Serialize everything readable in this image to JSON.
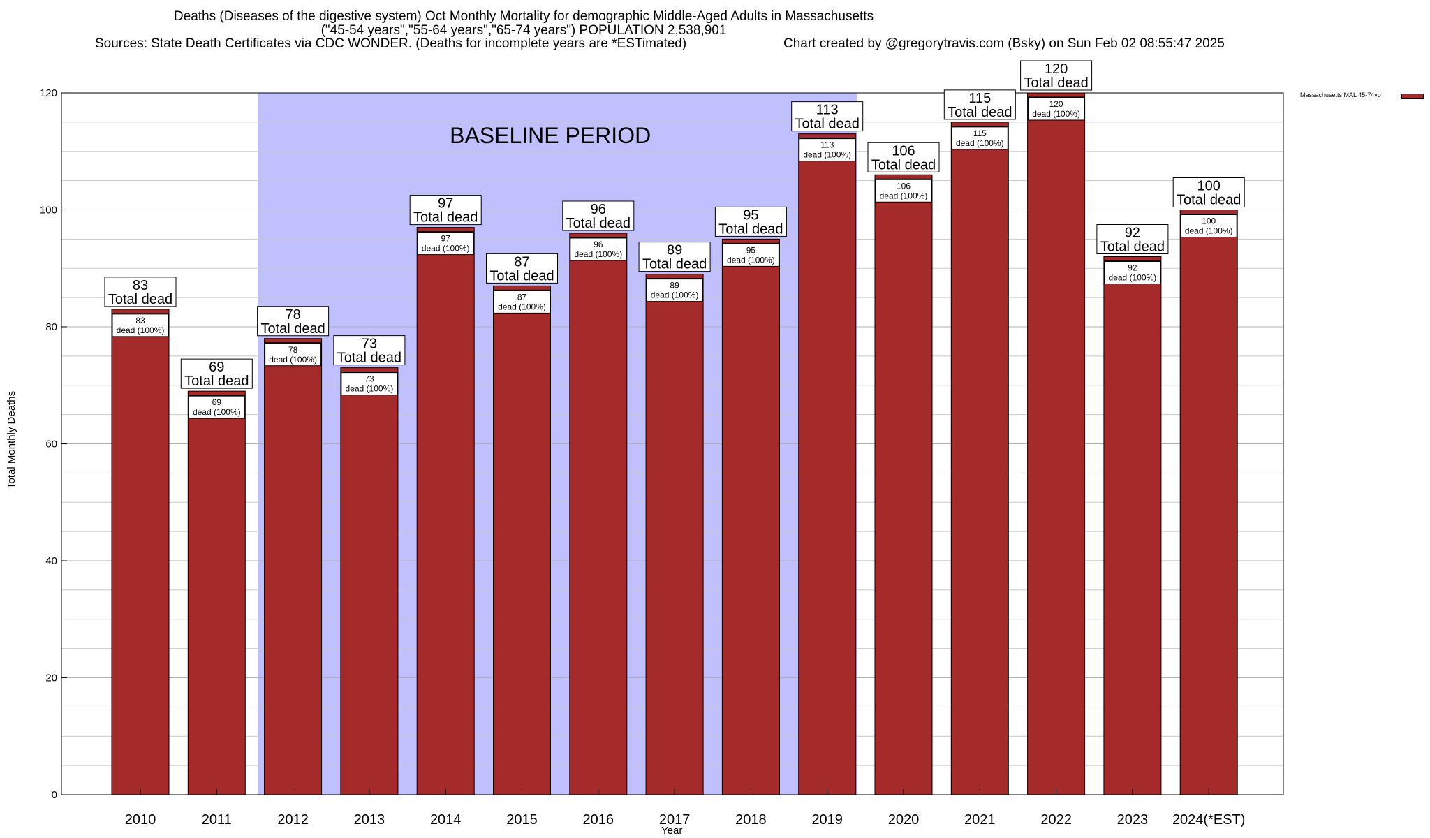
{
  "title": {
    "line1": "Deaths (Diseases of the digestive system) Oct Monthly Mortality for demographic Middle-Aged Adults in Massachusetts",
    "line2": "(\"45-54 years\",\"55-64 years\",\"65-74 years\") POPULATION 2,538,901",
    "sources": "Sources: State Death Certificates via CDC WONDER. (Deaths for incomplete years are *ESTimated)",
    "credit": "Chart created by @gregorytravis.com (Bsky) on Sun Feb 02 08:55:47 2025"
  },
  "chart_data": {
    "type": "bar",
    "categories": [
      "2010",
      "2011",
      "2012",
      "2013",
      "2014",
      "2015",
      "2016",
      "2017",
      "2018",
      "2019",
      "2020",
      "2021",
      "2022",
      "2023",
      "2024(*EST)"
    ],
    "series": [
      {
        "name": "Massachusetts MAL 45-74yo",
        "values": [
          83,
          69,
          78,
          73,
          97,
          87,
          96,
          89,
          95,
          113,
          106,
          115,
          120,
          92,
          100
        ],
        "color": "#a52a2a"
      }
    ],
    "xlabel": "Year",
    "ylabel": "Total Monthly Deaths",
    "ylim": [
      0,
      120
    ],
    "yticks": [
      0,
      20,
      40,
      60,
      80,
      100,
      120
    ],
    "grid": true,
    "legend": "top-right",
    "top_label_suffix": "Total dead",
    "inner_label_suffix": "dead (100%)",
    "baseline_period": {
      "label": "BASELINE PERIOD",
      "from": "2012",
      "to": "2019",
      "color": "#c0c0ff"
    }
  }
}
